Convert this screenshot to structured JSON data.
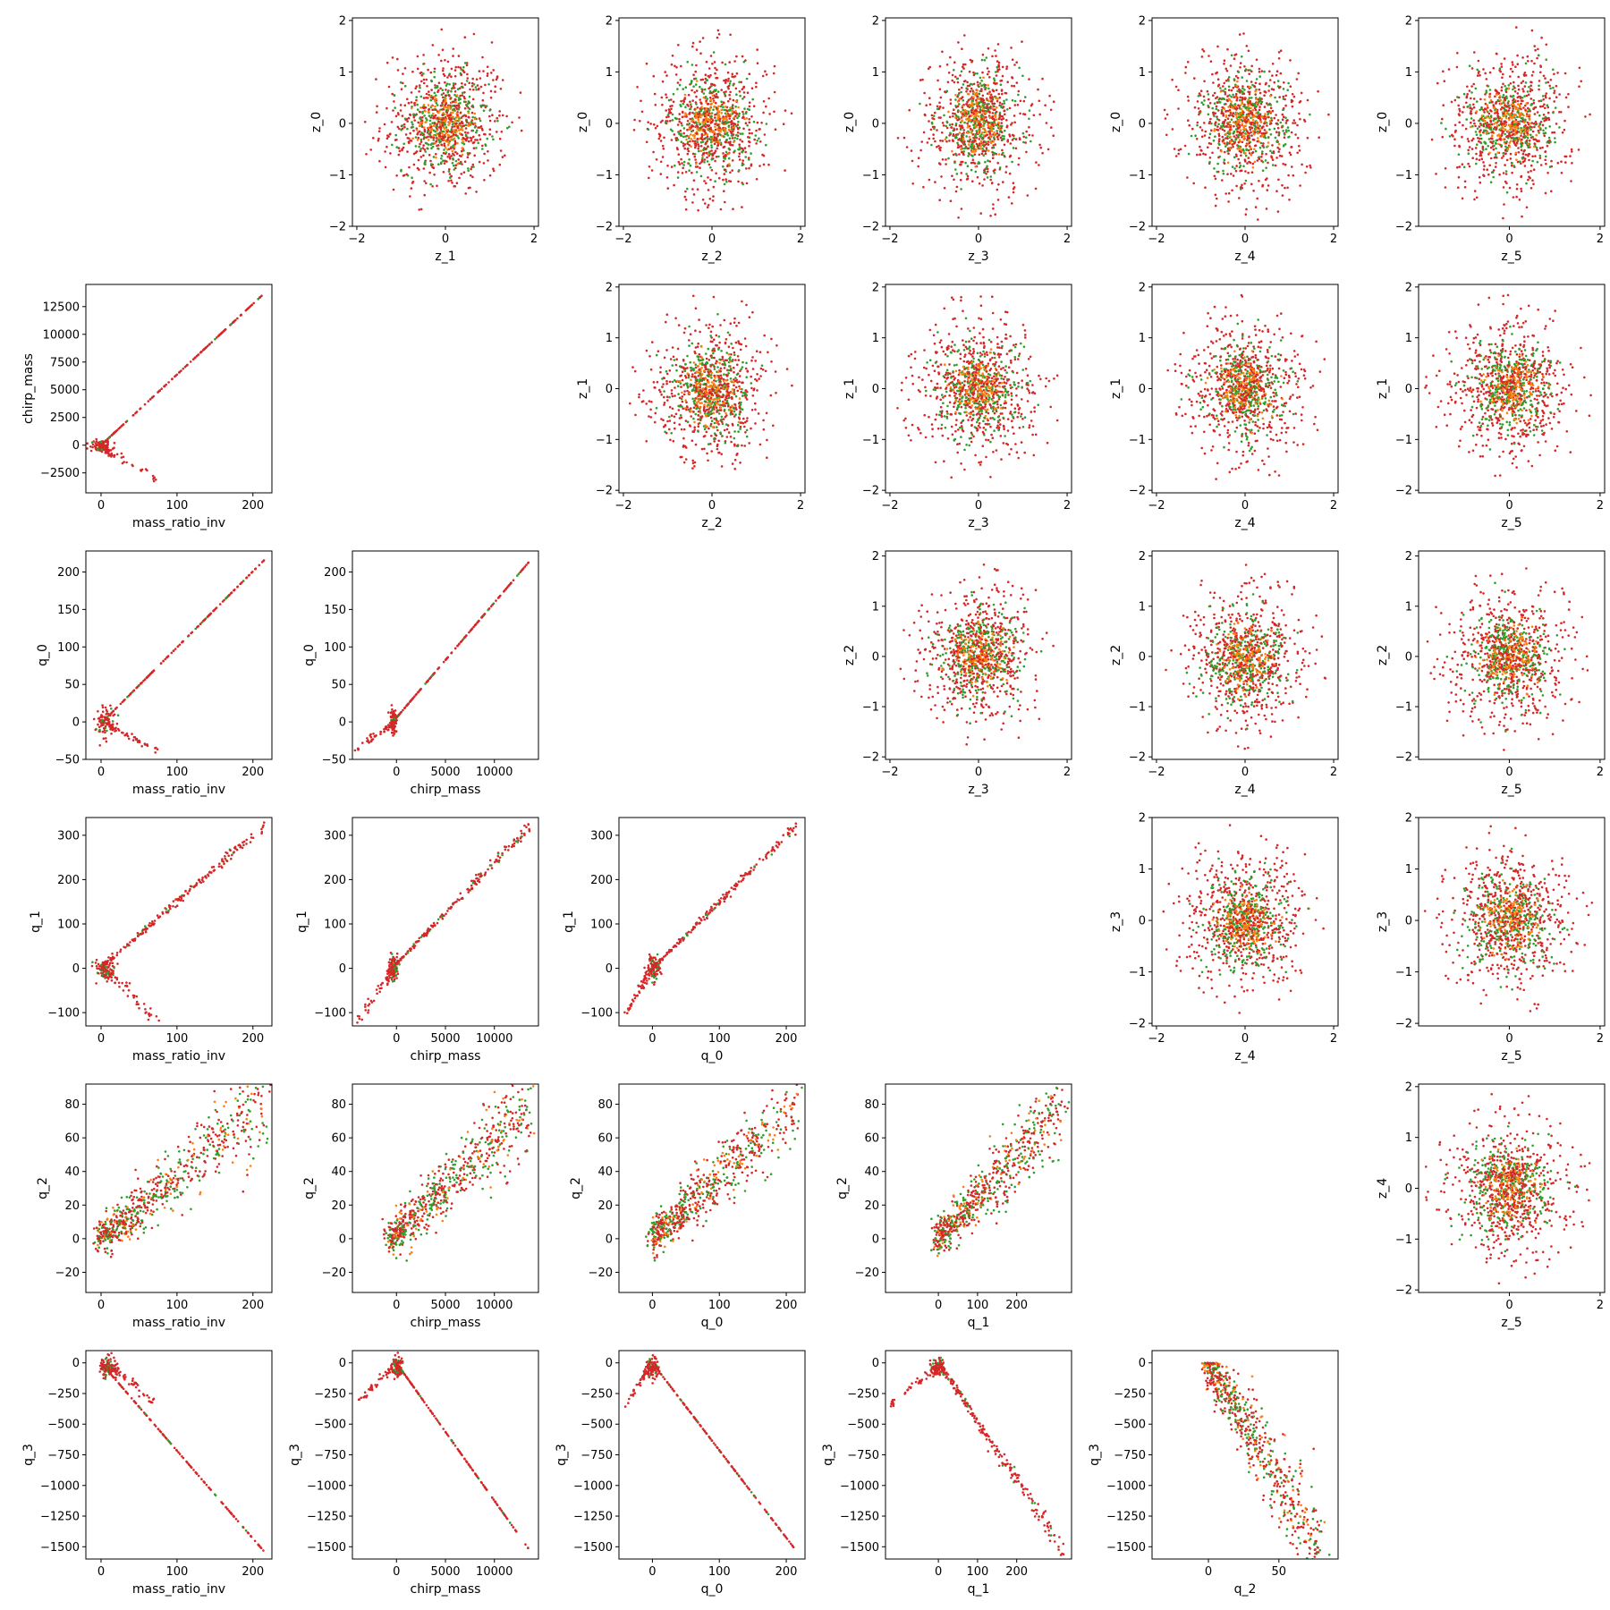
{
  "figure": {
    "colors": {
      "bad": "#d62728",
      "good": "#2ca02c",
      "mid": "#ff7f0e"
    }
  },
  "chart_data": [
    {
      "type": "scatter",
      "xlabel": "z_1",
      "ylabel": "z_0",
      "xlim": [
        -2.1,
        2.1
      ],
      "ylim": [
        -2,
        2.05
      ],
      "xticks": [
        -2,
        0,
        2
      ],
      "yticks": [
        -2,
        -1,
        0,
        1,
        2
      ],
      "dist": "blob"
    },
    {
      "type": "scatter",
      "xlabel": "z_2",
      "ylabel": "z_0",
      "xlim": [
        -2.1,
        2.1
      ],
      "ylim": [
        -2,
        2.05
      ],
      "xticks": [
        -2,
        0,
        2
      ],
      "yticks": [
        -2,
        -1,
        0,
        1,
        2
      ],
      "dist": "blob"
    },
    {
      "type": "scatter",
      "xlabel": "z_3",
      "ylabel": "z_0",
      "xlim": [
        -2.1,
        2.1
      ],
      "ylim": [
        -2,
        2.05
      ],
      "xticks": [
        -2,
        0,
        2
      ],
      "yticks": [
        -2,
        -1,
        0,
        1,
        2
      ],
      "dist": "blob"
    },
    {
      "type": "scatter",
      "xlabel": "z_4",
      "ylabel": "z_0",
      "xlim": [
        -2.1,
        2.1
      ],
      "ylim": [
        -2,
        2.05
      ],
      "xticks": [
        -2,
        0,
        2
      ],
      "yticks": [
        -2,
        -1,
        0,
        1,
        2
      ],
      "dist": "blob"
    },
    {
      "type": "scatter",
      "xlabel": "z_5",
      "ylabel": "z_0",
      "xlim": [
        -2,
        2.1
      ],
      "ylim": [
        -2,
        2.05
      ],
      "xticks": [
        0,
        2
      ],
      "yticks": [
        -2,
        -1,
        0,
        1,
        2
      ],
      "dist": "blob"
    },
    {
      "type": "scatter",
      "xlabel": "mass_ratio_inv",
      "ylabel": "chirp_mass",
      "xlim": [
        -20,
        225
      ],
      "ylim": [
        -4300,
        14500
      ],
      "xticks": [
        0,
        100,
        200
      ],
      "yticks": [
        -2500,
        0,
        2500,
        5000,
        7500,
        10000,
        12500
      ],
      "dist": "linear",
      "line": [
        [
          0,
          0
        ],
        [
          215,
          13700
        ]
      ],
      "cluster": [
        [
          0,
          -100
        ],
        [
          12,
          500
        ]
      ],
      "tail": [
        [
          5,
          -300
        ],
        [
          78,
          -3300
        ]
      ],
      "lineN": 160
    },
    {
      "type": "scatter",
      "xlabel": "z_2",
      "ylabel": "z_1",
      "xlim": [
        -2.1,
        2.1
      ],
      "ylim": [
        -2.05,
        2.05
      ],
      "xticks": [
        -2,
        0,
        2
      ],
      "yticks": [
        -2,
        -1,
        0,
        1,
        2
      ],
      "dist": "blob"
    },
    {
      "type": "scatter",
      "xlabel": "z_3",
      "ylabel": "z_1",
      "xlim": [
        -2.1,
        2.1
      ],
      "ylim": [
        -2.05,
        2.05
      ],
      "xticks": [
        -2,
        0,
        2
      ],
      "yticks": [
        -2,
        -1,
        0,
        1,
        2
      ],
      "dist": "blob"
    },
    {
      "type": "scatter",
      "xlabel": "z_4",
      "ylabel": "z_1",
      "xlim": [
        -2.1,
        2.1
      ],
      "ylim": [
        -2.05,
        2.05
      ],
      "xticks": [
        -2,
        0,
        2
      ],
      "yticks": [
        -2,
        -1,
        0,
        1,
        2
      ],
      "dist": "blob"
    },
    {
      "type": "scatter",
      "xlabel": "z_5",
      "ylabel": "z_1",
      "xlim": [
        -2,
        2.1
      ],
      "ylim": [
        -2.05,
        2.05
      ],
      "xticks": [
        0,
        2
      ],
      "yticks": [
        -2,
        -1,
        0,
        1,
        2
      ],
      "dist": "blob"
    },
    {
      "type": "scatter",
      "xlabel": "mass_ratio_inv",
      "ylabel": "q_0",
      "xlim": [
        -20,
        225
      ],
      "ylim": [
        -50,
        228
      ],
      "xticks": [
        0,
        100,
        200
      ],
      "yticks": [
        -50,
        0,
        50,
        100,
        150,
        200
      ],
      "dist": "linear",
      "line": [
        [
          0,
          -2
        ],
        [
          215,
          216
        ]
      ],
      "cluster": [
        [
          5,
          0
        ],
        [
          12,
          14
        ]
      ],
      "tail": [
        [
          10,
          -5
        ],
        [
          75,
          -38
        ]
      ],
      "lineN": 160
    },
    {
      "type": "scatter",
      "xlabel": "chirp_mass",
      "ylabel": "q_0",
      "xlim": [
        -4500,
        14500
      ],
      "ylim": [
        -50,
        228
      ],
      "xticks": [
        0,
        5000,
        10000
      ],
      "yticks": [
        -50,
        0,
        50,
        100,
        150,
        200
      ],
      "dist": "linear",
      "line": [
        [
          -500,
          -2
        ],
        [
          13700,
          216
        ]
      ],
      "cluster": [
        [
          -300,
          0
        ],
        [
          300,
          14
        ]
      ],
      "tail": [
        [
          -500,
          -5
        ],
        [
          -4300,
          -38
        ]
      ],
      "lineN": 160
    },
    {
      "type": "scatter",
      "xlabel": "z_3",
      "ylabel": "z_2",
      "xlim": [
        -2.1,
        2.1
      ],
      "ylim": [
        -2.05,
        2.1
      ],
      "xticks": [
        -2,
        0,
        2
      ],
      "yticks": [
        -2,
        -1,
        0,
        1,
        2
      ],
      "dist": "blob"
    },
    {
      "type": "scatter",
      "xlabel": "z_4",
      "ylabel": "z_2",
      "xlim": [
        -2.1,
        2.1
      ],
      "ylim": [
        -2.05,
        2.1
      ],
      "xticks": [
        -2,
        0,
        2
      ],
      "yticks": [
        -2,
        -1,
        0,
        1,
        2
      ],
      "dist": "blob"
    },
    {
      "type": "scatter",
      "xlabel": "z_5",
      "ylabel": "z_2",
      "xlim": [
        -2,
        2.1
      ],
      "ylim": [
        -2.05,
        2.1
      ],
      "xticks": [
        0,
        2
      ],
      "yticks": [
        -2,
        -1,
        0,
        1,
        2
      ],
      "dist": "blob"
    },
    {
      "type": "scatter",
      "xlabel": "mass_ratio_inv",
      "ylabel": "q_1",
      "xlim": [
        -20,
        225
      ],
      "ylim": [
        -130,
        340
      ],
      "xticks": [
        0,
        100,
        200
      ],
      "yticks": [
        -100,
        0,
        100,
        200,
        300
      ],
      "dist": "linear",
      "line": [
        [
          0,
          0
        ],
        [
          215,
          322
        ]
      ],
      "cluster": [
        [
          5,
          0
        ],
        [
          15,
          20
        ]
      ],
      "tail": [
        [
          10,
          -10
        ],
        [
          75,
          -120
        ]
      ],
      "lineN": 190,
      "lineSpread": 6
    },
    {
      "type": "scatter",
      "xlabel": "chirp_mass",
      "ylabel": "q_1",
      "xlim": [
        -4500,
        14500
      ],
      "ylim": [
        -130,
        340
      ],
      "xticks": [
        0,
        5000,
        10000
      ],
      "yticks": [
        -100,
        0,
        100,
        200,
        300
      ],
      "dist": "linear",
      "line": [
        [
          -500,
          0
        ],
        [
          13700,
          322
        ]
      ],
      "cluster": [
        [
          -300,
          0
        ],
        [
          500,
          20
        ]
      ],
      "tail": [
        [
          -500,
          -10
        ],
        [
          -4000,
          -120
        ]
      ],
      "lineN": 190,
      "lineSpread": 6
    },
    {
      "type": "scatter",
      "xlabel": "q_0",
      "ylabel": "q_1",
      "xlim": [
        -50,
        228
      ],
      "ylim": [
        -130,
        340
      ],
      "xticks": [
        0,
        100,
        200
      ],
      "yticks": [
        -100,
        0,
        100,
        200,
        300
      ],
      "dist": "linear",
      "line": [
        [
          0,
          0
        ],
        [
          216,
          322
        ]
      ],
      "cluster": [
        [
          0,
          0
        ],
        [
          10,
          20
        ]
      ],
      "tail": [
        [
          -5,
          -10
        ],
        [
          -40,
          -105
        ]
      ],
      "lineN": 190,
      "lineSpread": 6
    },
    {
      "type": "scatter",
      "xlabel": "z_4",
      "ylabel": "z_3",
      "xlim": [
        -2.1,
        2.1
      ],
      "ylim": [
        -2.05,
        2
      ],
      "xticks": [
        -2,
        0,
        2
      ],
      "yticks": [
        -2,
        -1,
        0,
        1,
        2
      ],
      "dist": "blob"
    },
    {
      "type": "scatter",
      "xlabel": "z_5",
      "ylabel": "z_3",
      "xlim": [
        -2,
        2.1
      ],
      "ylim": [
        -2.05,
        2
      ],
      "xticks": [
        0,
        2
      ],
      "yticks": [
        -2,
        -1,
        0,
        1,
        2
      ],
      "dist": "blob"
    },
    {
      "type": "scatter",
      "xlabel": "mass_ratio_inv",
      "ylabel": "q_2",
      "xlim": [
        -20,
        225
      ],
      "ylim": [
        -32,
        92
      ],
      "xticks": [
        0,
        100,
        200
      ],
      "yticks": [
        -20,
        0,
        20,
        40,
        60,
        80
      ],
      "dist": "wedge",
      "wx": [
        0,
        215
      ],
      "wy": [
        0,
        80
      ],
      "wspread": 10
    },
    {
      "type": "scatter",
      "xlabel": "chirp_mass",
      "ylabel": "q_2",
      "xlim": [
        -4500,
        14500
      ],
      "ylim": [
        -32,
        92
      ],
      "xticks": [
        0,
        5000,
        10000
      ],
      "yticks": [
        -20,
        0,
        20,
        40,
        60,
        80
      ],
      "dist": "wedge",
      "wx": [
        -500,
        13700
      ],
      "wy": [
        0,
        80
      ],
      "wspread": 10
    },
    {
      "type": "scatter",
      "xlabel": "q_0",
      "ylabel": "q_2",
      "xlim": [
        -50,
        228
      ],
      "ylim": [
        -32,
        92
      ],
      "xticks": [
        0,
        100,
        200
      ],
      "yticks": [
        -20,
        0,
        20,
        40,
        60,
        80
      ],
      "dist": "wedge",
      "wx": [
        0,
        216
      ],
      "wy": [
        0,
        80
      ],
      "wspread": 10
    },
    {
      "type": "scatter",
      "xlabel": "q_1",
      "ylabel": "q_2",
      "xlim": [
        -135,
        340
      ],
      "ylim": [
        -32,
        92
      ],
      "xticks": [
        0,
        100,
        200
      ],
      "yticks": [
        -20,
        0,
        20,
        40,
        60,
        80
      ],
      "dist": "wedge",
      "wx": [
        0,
        322
      ],
      "wy": [
        0,
        80
      ],
      "wspread": 10
    },
    {
      "type": "scatter",
      "xlabel": "z_5",
      "ylabel": "z_4",
      "xlim": [
        -2,
        2.1
      ],
      "ylim": [
        -2.05,
        2.05
      ],
      "xticks": [
        0,
        2
      ],
      "yticks": [
        -2,
        -1,
        0,
        1,
        2
      ],
      "dist": "blob"
    },
    {
      "type": "scatter",
      "xlabel": "mass_ratio_inv",
      "ylabel": "q_3",
      "xlim": [
        -20,
        225
      ],
      "ylim": [
        -1600,
        100
      ],
      "xticks": [
        0,
        100,
        200
      ],
      "yticks": [
        -1500,
        -1250,
        -1000,
        -750,
        -500,
        -250,
        0
      ],
      "dist": "linear",
      "line": [
        [
          0,
          0
        ],
        [
          215,
          -1540
        ]
      ],
      "cluster": [
        [
          10,
          -40
        ],
        [
          15,
          70
        ]
      ],
      "tail": [
        [
          15,
          -40
        ],
        [
          70,
          -320
        ]
      ],
      "lineN": 160
    },
    {
      "type": "scatter",
      "xlabel": "chirp_mass",
      "ylabel": "q_3",
      "xlim": [
        -4500,
        14500
      ],
      "ylim": [
        -1600,
        100
      ],
      "xticks": [
        0,
        5000,
        10000
      ],
      "yticks": [
        -1500,
        -1250,
        -1000,
        -750,
        -500,
        -250,
        0
      ],
      "dist": "linear",
      "line": [
        [
          0,
          0
        ],
        [
          13700,
          -1540
        ]
      ],
      "cluster": [
        [
          100,
          -40
        ],
        [
          500,
          70
        ]
      ],
      "tail": [
        [
          -300,
          -40
        ],
        [
          -4200,
          -340
        ]
      ],
      "lineN": 160
    },
    {
      "type": "scatter",
      "xlabel": "q_0",
      "ylabel": "q_3",
      "xlim": [
        -50,
        228
      ],
      "ylim": [
        -1600,
        100
      ],
      "xticks": [
        0,
        100,
        200
      ],
      "yticks": [
        -1500,
        -1250,
        -1000,
        -750,
        -500,
        -250,
        0
      ],
      "dist": "linear",
      "line": [
        [
          0,
          0
        ],
        [
          216,
          -1540
        ]
      ],
      "cluster": [
        [
          0,
          -40
        ],
        [
          10,
          70
        ]
      ],
      "tail": [
        [
          -5,
          -40
        ],
        [
          -40,
          -340
        ]
      ],
      "lineN": 160
    },
    {
      "type": "scatter",
      "xlabel": "q_1",
      "ylabel": "q_3",
      "xlim": [
        -135,
        340
      ],
      "ylim": [
        -1600,
        100
      ],
      "xticks": [
        0,
        100,
        200
      ],
      "yticks": [
        -1500,
        -1250,
        -1000,
        -750,
        -500,
        -250,
        0
      ],
      "dist": "linear",
      "line": [
        [
          0,
          0
        ],
        [
          322,
          -1540
        ]
      ],
      "cluster": [
        [
          0,
          -40
        ],
        [
          15,
          70
        ]
      ],
      "tail": [
        [
          -10,
          -40
        ],
        [
          -120,
          -340
        ]
      ],
      "lineN": 200,
      "lineSpread": 45
    },
    {
      "type": "scatter",
      "xlabel": "q_2",
      "ylabel": "q_3",
      "xlim": [
        -40,
        92
      ],
      "ylim": [
        -1600,
        100
      ],
      "xticks": [
        0,
        50
      ],
      "yticks": [
        -1500,
        -1250,
        -1000,
        -750,
        -500,
        -250,
        0
      ],
      "dist": "wedge",
      "wx": [
        0,
        80
      ],
      "wy": [
        0,
        -1540
      ],
      "wspread": 170,
      "wtop": true
    }
  ]
}
